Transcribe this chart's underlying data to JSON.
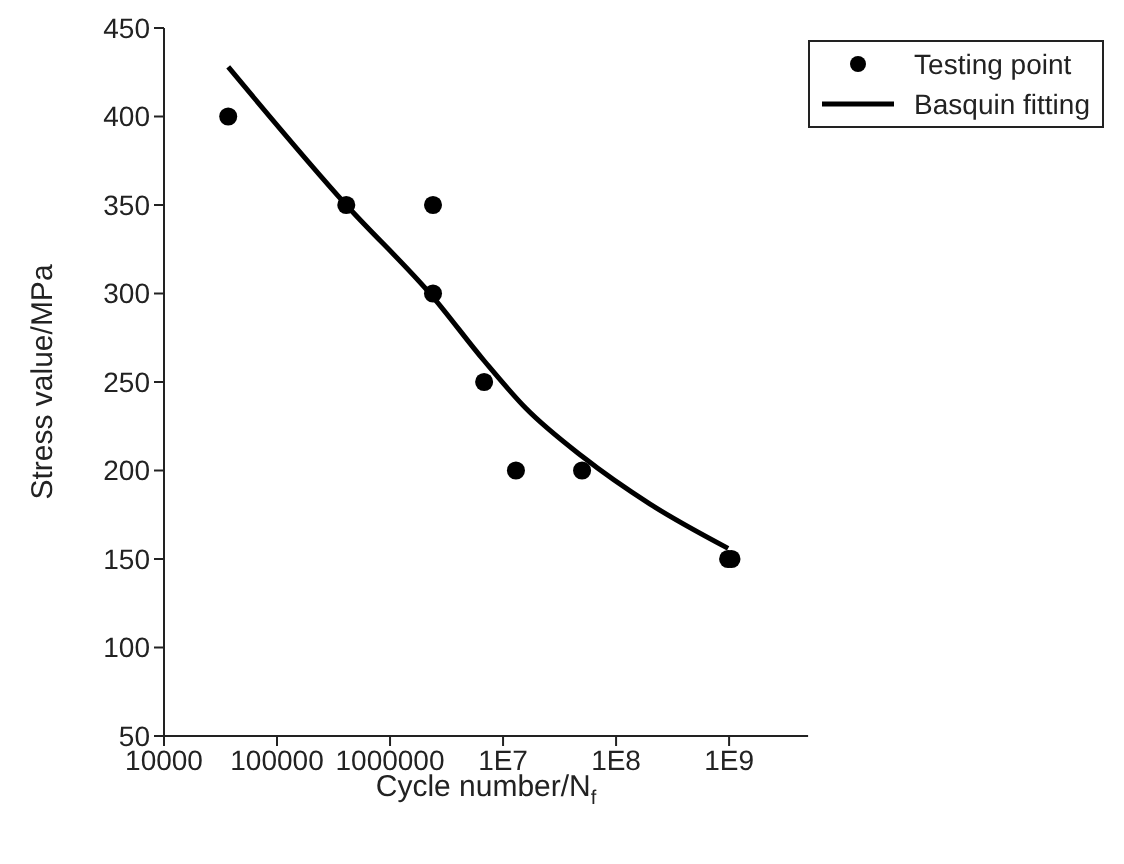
{
  "chart_data": {
    "type": "scatter",
    "xlabel": "Cycle number/N$_{f}$",
    "ylabel": "Stress value/MPa",
    "log": "x",
    "xlim": [
      10000,
      5000000000
    ],
    "xticks": [
      10000,
      100000,
      1000000,
      {
        "value": 10000000,
        "label": "1E7"
      },
      {
        "value": 100000000,
        "label": "1E8"
      },
      {
        "value": 1000000000,
        "label": "1E9"
      }
    ],
    "ylim": [
      50,
      450
    ],
    "yticks": [
      50,
      100,
      150,
      200,
      250,
      300,
      350,
      400,
      450
    ],
    "grid": false,
    "legend": "top right",
    "series": [
      {
        "name": "Testing point",
        "color": "#000000",
        "marker": "circle",
        "x": [
          37000,
          410000,
          2400000,
          2400000,
          6800000,
          13000000,
          50000000,
          980000000,
          1050000000
        ],
        "values": [
          400,
          350,
          350,
          300,
          250,
          200,
          200,
          150,
          150
        ]
      },
      {
        "name": "Basquin fitting",
        "type": "line",
        "color": "#000000",
        "marker": "none",
        "line_style": "solid",
        "x": [
          37000,
          410000,
          2400000,
          6800000,
          16000000,
          50000000,
          200000000,
          980000000
        ],
        "values": [
          428,
          350,
          298,
          262,
          235,
          208,
          181,
          156
        ]
      }
    ]
  }
}
